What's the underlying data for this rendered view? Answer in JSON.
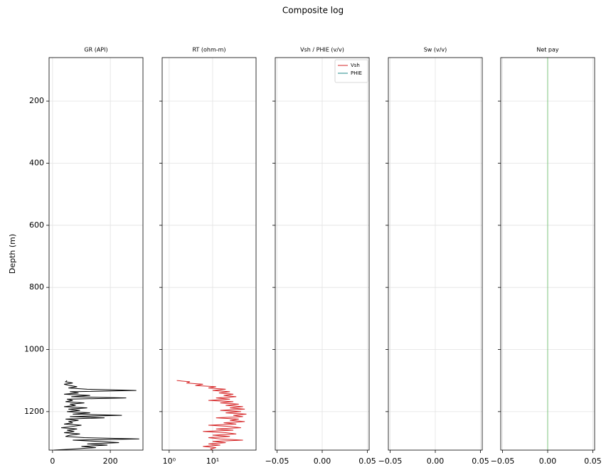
{
  "title": "Composite log",
  "ylabel": "Depth (m)",
  "chart_data": [
    {
      "type": "line",
      "title": "GR (API)",
      "color": "#000000",
      "xlim": [
        -12,
        313
      ],
      "xticks": [
        0,
        200
      ],
      "ylim": [
        1324,
        60
      ],
      "yticks": [
        200,
        400,
        600,
        800,
        1000,
        1200
      ],
      "grid": true,
      "y": [
        1100,
        1104,
        1108,
        1112,
        1116,
        1120,
        1124,
        1128,
        1132,
        1136,
        1140,
        1144,
        1148,
        1152,
        1156,
        1160,
        1164,
        1168,
        1172,
        1176,
        1180,
        1184,
        1188,
        1192,
        1196,
        1200,
        1204,
        1208,
        1212,
        1216,
        1220,
        1224,
        1228,
        1232,
        1236,
        1240,
        1244,
        1248,
        1252,
        1256,
        1260,
        1264,
        1268,
        1272,
        1276,
        1280,
        1284,
        1288,
        1292,
        1296,
        1300,
        1304,
        1308,
        1312,
        1316,
        1320,
        1324
      ],
      "values": [
        50,
        45,
        70,
        40,
        60,
        85,
        55,
        120,
        290,
        60,
        90,
        40,
        130,
        65,
        255,
        50,
        70,
        45,
        110,
        60,
        80,
        40,
        120,
        55,
        95,
        50,
        130,
        70,
        240,
        60,
        180,
        45,
        90,
        55,
        70,
        40,
        100,
        65,
        30,
        85,
        50,
        75,
        40,
        95,
        60,
        45,
        110,
        300,
        70,
        160,
        230,
        120,
        190,
        100,
        150,
        80,
        5
      ]
    },
    {
      "type": "line",
      "title": "RT (ohm-m)",
      "color": "#d62728",
      "xscale": "log",
      "xlim": [
        0.69,
        100
      ],
      "xticks": [
        {
          "value": 1,
          "label": "10⁰"
        },
        {
          "value": 10,
          "label": "10¹"
        }
      ],
      "ylim": [
        1324,
        60
      ],
      "yticks": [
        200,
        400,
        600,
        800,
        1000,
        1200
      ],
      "grid": true,
      "y": [
        1100,
        1104,
        1108,
        1112,
        1116,
        1120,
        1124,
        1128,
        1132,
        1136,
        1140,
        1144,
        1148,
        1152,
        1156,
        1160,
        1164,
        1168,
        1172,
        1176,
        1180,
        1184,
        1188,
        1192,
        1196,
        1200,
        1204,
        1208,
        1212,
        1216,
        1220,
        1224,
        1228,
        1232,
        1236,
        1240,
        1244,
        1248,
        1252,
        1256,
        1260,
        1264,
        1268,
        1272,
        1276,
        1280,
        1284,
        1288,
        1292,
        1296,
        1300,
        1304,
        1308,
        1312,
        1316,
        1320,
        1324
      ],
      "values": [
        1.5,
        3,
        2.5,
        6,
        4,
        12,
        8,
        20,
        10,
        25,
        14,
        30,
        18,
        35,
        12,
        25,
        8,
        30,
        15,
        40,
        20,
        50,
        25,
        55,
        15,
        45,
        20,
        60,
        30,
        50,
        12,
        40,
        25,
        55,
        18,
        35,
        8,
        25,
        45,
        12,
        30,
        6,
        20,
        35,
        10,
        25,
        8,
        15,
        50,
        10,
        20,
        8,
        15,
        6,
        12,
        9,
        10
      ]
    },
    {
      "type": "line",
      "title": "Vsh / PHIE (v/v)",
      "legend": "upper right",
      "xlim": [
        -0.052,
        0.052
      ],
      "xticks": [
        {
          "value": -0.05,
          "label": "−0.05"
        },
        {
          "value": 0,
          "label": "0.00"
        },
        {
          "value": 0.05,
          "label": "0.05"
        }
      ],
      "ylim": [
        1324,
        60
      ],
      "yticks": [
        200,
        400,
        600,
        800,
        1000,
        1200
      ],
      "grid": true,
      "series": [
        {
          "name": "Vsh",
          "color": "#d62728",
          "values": [],
          "y": []
        },
        {
          "name": "PHIE",
          "color": "#1f8a8a",
          "values": [],
          "y": []
        }
      ]
    },
    {
      "type": "line",
      "title": "Sw (v/v)",
      "xlim": [
        -0.052,
        0.052
      ],
      "xticks": [
        {
          "value": -0.05,
          "label": "−0.05"
        },
        {
          "value": 0,
          "label": "0.00"
        },
        {
          "value": 0.05,
          "label": "0.05"
        }
      ],
      "ylim": [
        1324,
        60
      ],
      "yticks": [
        200,
        400,
        600,
        800,
        1000,
        1200
      ],
      "grid": true
    },
    {
      "type": "line",
      "title": "Net pay",
      "color": "#7cc47c",
      "xlim": [
        -0.052,
        0.052
      ],
      "xticks": [
        {
          "value": -0.05,
          "label": "−0.05"
        },
        {
          "value": 0,
          "label": "0.00"
        },
        {
          "value": 0.05,
          "label": "0.05"
        }
      ],
      "ylim": [
        1324,
        60
      ],
      "yticks": [
        200,
        400,
        600,
        800,
        1000,
        1200
      ],
      "grid": true,
      "y": [
        60,
        1324
      ],
      "values": [
        0,
        0
      ]
    }
  ]
}
